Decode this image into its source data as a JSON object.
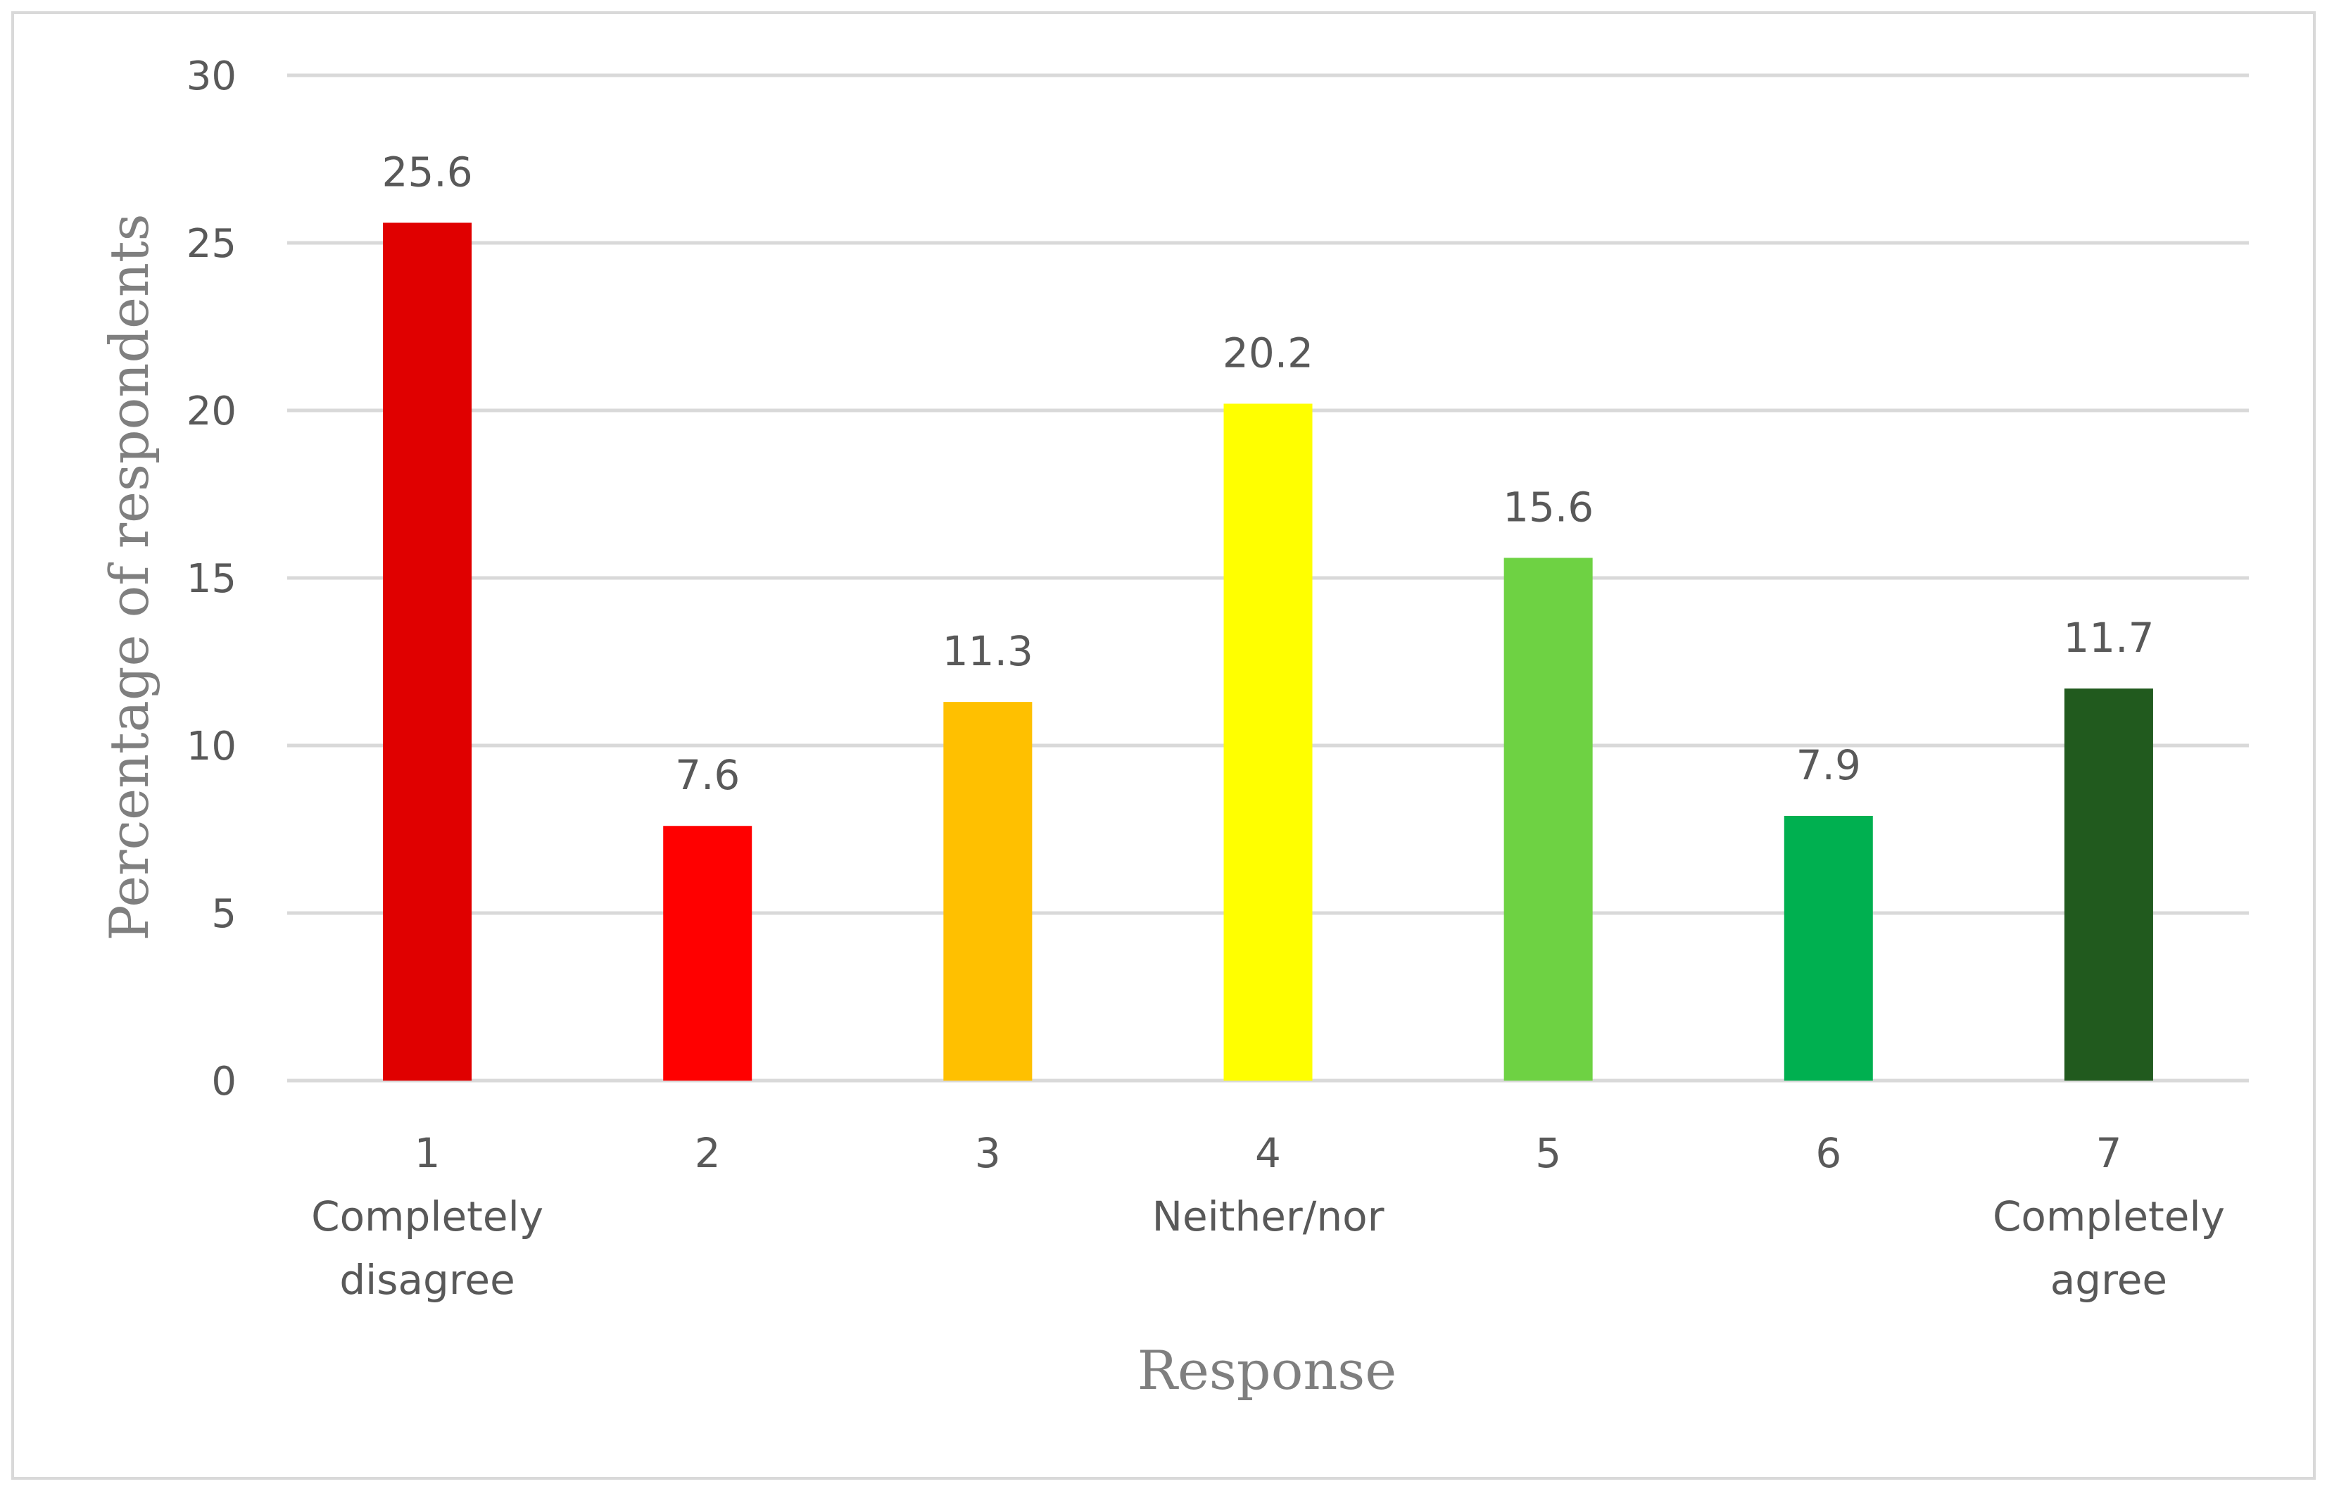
{
  "chart_data": {
    "type": "bar",
    "title": "",
    "xlabel": "Response",
    "ylabel": "Percentage of respondents",
    "ylim": [
      0,
      30
    ],
    "yticks": [
      0,
      5,
      10,
      15,
      20,
      25,
      30
    ],
    "grid": true,
    "legend": "none",
    "categories": [
      {
        "label": "1",
        "sublabel": [
          "Completely",
          "disagree"
        ]
      },
      {
        "label": "2",
        "sublabel": []
      },
      {
        "label": "3",
        "sublabel": []
      },
      {
        "label": "4",
        "sublabel": [
          "Neither/nor"
        ]
      },
      {
        "label": "5",
        "sublabel": []
      },
      {
        "label": "6",
        "sublabel": []
      },
      {
        "label": "7",
        "sublabel": [
          "Completely",
          "agree"
        ]
      }
    ],
    "values": [
      25.6,
      7.6,
      11.3,
      20.2,
      15.6,
      7.9,
      11.7
    ],
    "data_labels": [
      "25.6",
      "7.6",
      "11.3",
      "20.2",
      "15.6",
      "7.9",
      "11.7"
    ],
    "colors": [
      "#E00000",
      "#FF0000",
      "#FFC000",
      "#FFFF00",
      "#6ED243",
      "#00B050",
      "#215A1E"
    ]
  },
  "style": {
    "gridline_color": "#D9D9D9",
    "border_color": "#D9D9D9",
    "text_color": "#595959",
    "axis_title_color": "#7F7F7F"
  }
}
